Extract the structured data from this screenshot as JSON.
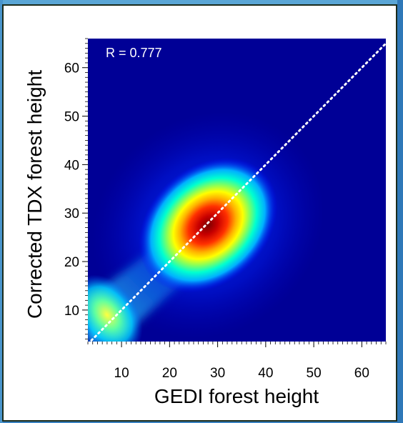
{
  "chart_data": {
    "type": "heatmap",
    "title": "",
    "xlabel": "GEDI forest height",
    "ylabel": "Corrected TDX forest height",
    "xlim": [
      3,
      65
    ],
    "ylim": [
      3.5,
      66
    ],
    "xticks": [
      10,
      20,
      30,
      40,
      50,
      60
    ],
    "yticks": [
      10,
      20,
      30,
      40,
      50,
      60
    ],
    "annotation": "R = 0.777",
    "reference_line": {
      "style": "dotted",
      "color": "#ffffff",
      "from": [
        3,
        3
      ],
      "to": [
        65,
        65
      ]
    },
    "density_peaks": [
      {
        "x": 28,
        "y": 27.5,
        "relative_density": 1.0
      },
      {
        "x": 7,
        "y": 9,
        "relative_density": 0.45
      }
    ],
    "colormap": [
      "#00007f",
      "#0000ff",
      "#00bfff",
      "#00ffbf",
      "#ffff00",
      "#ff7f00",
      "#ff0000",
      "#800000"
    ],
    "grid": false
  }
}
